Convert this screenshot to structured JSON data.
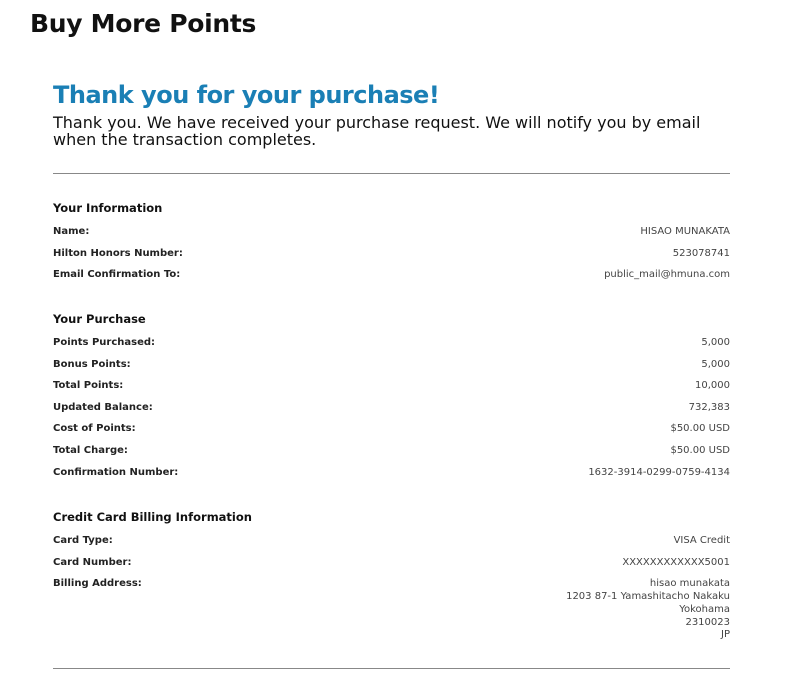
{
  "page_title": "Buy More Points",
  "confirmation": {
    "heading": "Thank you for your purchase!",
    "message": "Thank you. We have received your purchase request. We will notify you by email when the transaction completes."
  },
  "your_information": {
    "title": "Your Information",
    "rows": [
      {
        "label": "Name:",
        "value": "HISAO MUNAKATA"
      },
      {
        "label": "Hilton Honors Number:",
        "value": "523078741"
      },
      {
        "label": "Email Confirmation To:",
        "value": "public_mail@hmuna.com"
      }
    ]
  },
  "your_purchase": {
    "title": "Your Purchase",
    "rows": [
      {
        "label": "Points Purchased:",
        "value": "5,000"
      },
      {
        "label": "Bonus Points:",
        "value": "5,000"
      },
      {
        "label": "Total Points:",
        "value": "10,000"
      },
      {
        "label": "Updated Balance:",
        "value": "732,383"
      },
      {
        "label": "Cost of Points:",
        "value": "$50.00 USD"
      },
      {
        "label": "Total Charge:",
        "value": "$50.00 USD"
      },
      {
        "label": "Confirmation Number:",
        "value": "1632-3914-0299-0759-4134"
      }
    ]
  },
  "billing": {
    "title": "Credit Card Billing Information",
    "rows": [
      {
        "label": "Card Type:",
        "value": "VISA Credit"
      },
      {
        "label": "Card Number:",
        "value": "XXXXXXXXXXXX5001"
      }
    ],
    "address_label": "Billing Address:",
    "address_lines": [
      "hisao munakata",
      "1203 87-1 Yamashitacho Nakaku",
      "Yokohama",
      "2310023",
      "JP"
    ]
  },
  "colors": {
    "accent": "#1a7fb5"
  }
}
